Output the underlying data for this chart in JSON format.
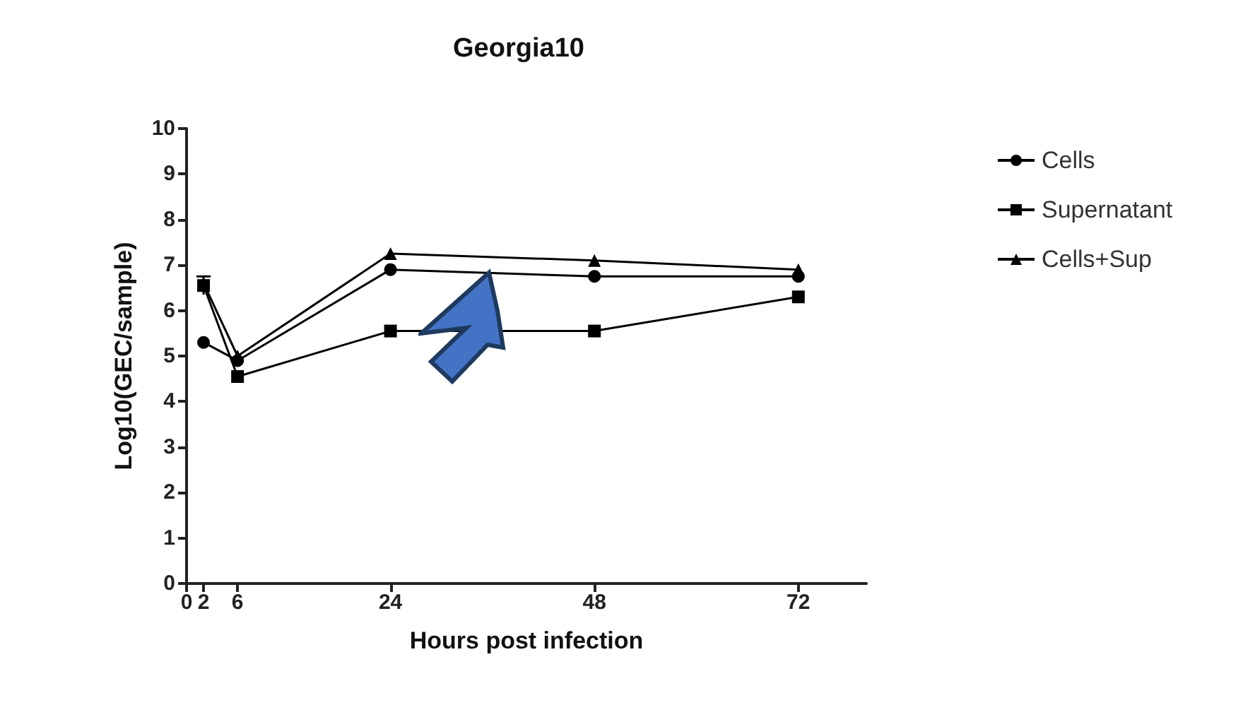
{
  "chart_data": {
    "type": "line",
    "title": "Georgia10",
    "xlabel": "Hours post infection",
    "ylabel": "Log10(GEC/sample)",
    "x": [
      2,
      6,
      24,
      48,
      72
    ],
    "series": [
      {
        "name": "Cells",
        "color": "#000000",
        "marker": "circle",
        "values": [
          5.3,
          4.9,
          6.9,
          6.75,
          6.75
        ]
      },
      {
        "name": "Supernatant",
        "color": "#000000",
        "marker": "square",
        "values": [
          6.55,
          4.55,
          5.55,
          5.55,
          6.3
        ],
        "errors": [
          0.2,
          null,
          null,
          null,
          null
        ]
      },
      {
        "name": "Cells+Sup",
        "color": "#000000",
        "marker": "triangle",
        "values": [
          6.6,
          5.0,
          7.25,
          7.1,
          6.9
        ]
      }
    ],
    "xlim": [
      0,
      80
    ],
    "xticks": [
      0,
      2,
      6,
      24,
      48,
      72
    ],
    "ylim": [
      0,
      10
    ],
    "yticks": [
      0,
      1,
      2,
      3,
      4,
      5,
      6,
      7,
      8,
      9,
      10
    ],
    "grid": false,
    "legend": "right",
    "line_style": "solid"
  }
}
